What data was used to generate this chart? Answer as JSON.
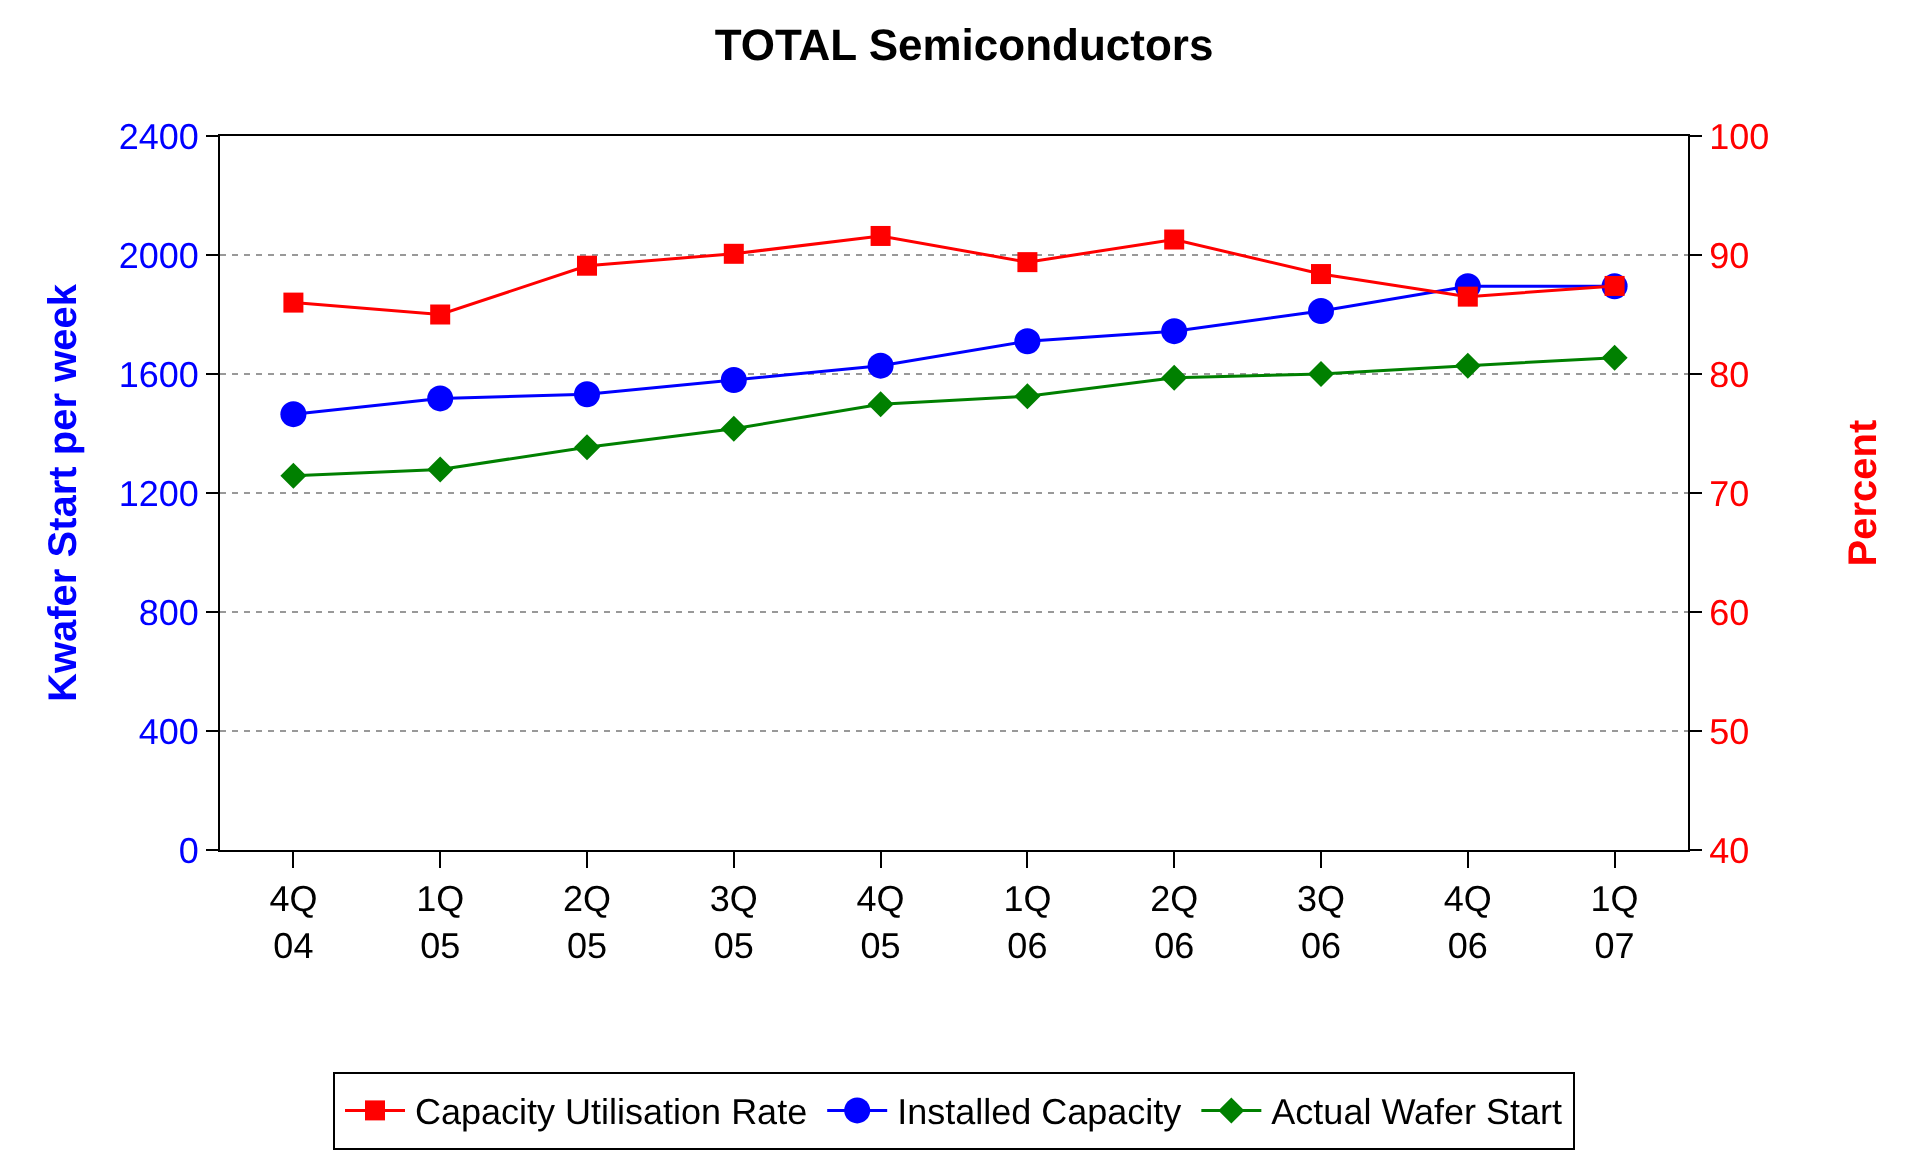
{
  "chart_data": {
    "type": "line",
    "title": "TOTAL Semiconductors",
    "ylabel": "Kwafer Start per week",
    "y2label": "Percent",
    "categories": [
      "4Q\n04",
      "1Q\n05",
      "2Q\n05",
      "3Q\n05",
      "4Q\n05",
      "1Q\n06",
      "2Q\n06",
      "3Q\n06",
      "4Q\n06",
      "1Q\n07"
    ],
    "series": [
      {
        "name": "Capacity Utilisation Rate",
        "color": "#ff0000",
        "marker": "square",
        "axis": "y2",
        "values": [
          86.0,
          85.0,
          89.1,
          90.1,
          91.6,
          89.4,
          91.3,
          88.4,
          86.5,
          87.4
        ]
      },
      {
        "name": "Installed Capacity",
        "color": "#0000ff",
        "marker": "circle",
        "values": [
          1465,
          1518,
          1532,
          1580,
          1628,
          1710,
          1744,
          1812,
          1895,
          1895
        ]
      },
      {
        "name": "Actual Wafer Start",
        "color": "#008000",
        "marker": "diamond",
        "values": [
          1258,
          1279,
          1354,
          1416,
          1498,
          1525,
          1587,
          1600,
          1628,
          1655
        ]
      }
    ],
    "ylim": [
      0,
      2400
    ],
    "yticks": [
      0,
      400,
      800,
      1200,
      1600,
      2000,
      2400
    ],
    "y2lim": [
      40,
      100
    ],
    "y2ticks": [
      40,
      50,
      60,
      70,
      80,
      90,
      100
    ],
    "grid": "y",
    "legend": "bottom",
    "line_style": "solid"
  }
}
